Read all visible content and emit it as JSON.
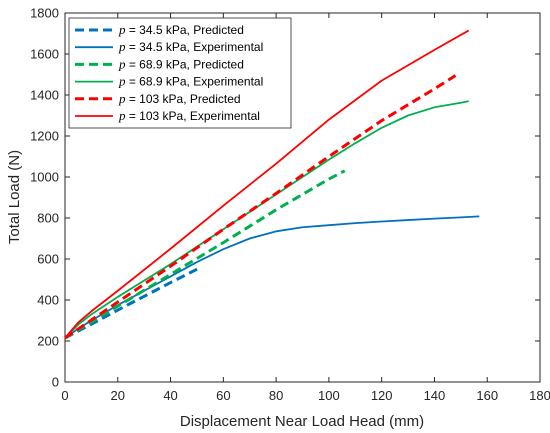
{
  "chart_data": {
    "type": "line",
    "title": "",
    "xlabel": "Displacement Near Load Head (mm)",
    "ylabel": "Total Load (N)",
    "xlim": [
      0,
      180
    ],
    "ylim": [
      0,
      1800
    ],
    "xticks": [
      0,
      20,
      40,
      60,
      80,
      100,
      120,
      140,
      160,
      180
    ],
    "yticks": [
      0,
      200,
      400,
      600,
      800,
      1000,
      1200,
      1400,
      1600,
      1800
    ],
    "grid": false,
    "legend_position": "top-left",
    "series": [
      {
        "name": "= 34.5 kPa, Predicted",
        "var": "p",
        "color": "#0072BD",
        "style": "dashed",
        "x": [
          0,
          10,
          20,
          30,
          40,
          50
        ],
        "y": [
          215,
          282,
          351,
          418,
          485,
          550
        ]
      },
      {
        "name": "= 34.5 kPa, Experimental",
        "var": "p",
        "color": "#0072BD",
        "style": "solid",
        "x": [
          0,
          5,
          10,
          20,
          30,
          40,
          50,
          60,
          70,
          80,
          90,
          100,
          110,
          120,
          130,
          140,
          150,
          157
        ],
        "y": [
          215,
          260,
          300,
          375,
          445,
          515,
          585,
          648,
          700,
          735,
          755,
          765,
          775,
          783,
          790,
          797,
          803,
          808
        ]
      },
      {
        "name": "= 68.9 kPa, Predicted",
        "var": "p",
        "color": "#00B050",
        "style": "dashed",
        "x": [
          0,
          20,
          40,
          60,
          80,
          100,
          106
        ],
        "y": [
          215,
          370,
          525,
          680,
          840,
          990,
          1030
        ]
      },
      {
        "name": "= 68.9 kPa, Experimental",
        "var": "p",
        "color": "#00B050",
        "style": "solid",
        "x": [
          0,
          5,
          10,
          20,
          40,
          60,
          80,
          100,
          110,
          120,
          130,
          140,
          150,
          153
        ],
        "y": [
          215,
          280,
          330,
          415,
          575,
          745,
          915,
          1085,
          1165,
          1240,
          1300,
          1340,
          1362,
          1370
        ]
      },
      {
        "name": "= 103 kPa, Predicted",
        "var": "p",
        "color": "#FF0000",
        "style": "dashed",
        "x": [
          0,
          20,
          40,
          60,
          80,
          100,
          120,
          140,
          148
        ],
        "y": [
          215,
          390,
          565,
          745,
          920,
          1100,
          1275,
          1430,
          1495
        ]
      },
      {
        "name": "= 103 kPa, Experimental",
        "var": "p",
        "color": "#FF0000",
        "style": "solid",
        "x": [
          0,
          5,
          10,
          20,
          40,
          60,
          80,
          100,
          120,
          140,
          153
        ],
        "y": [
          215,
          290,
          345,
          445,
          650,
          860,
          1065,
          1280,
          1470,
          1620,
          1715
        ]
      }
    ]
  }
}
